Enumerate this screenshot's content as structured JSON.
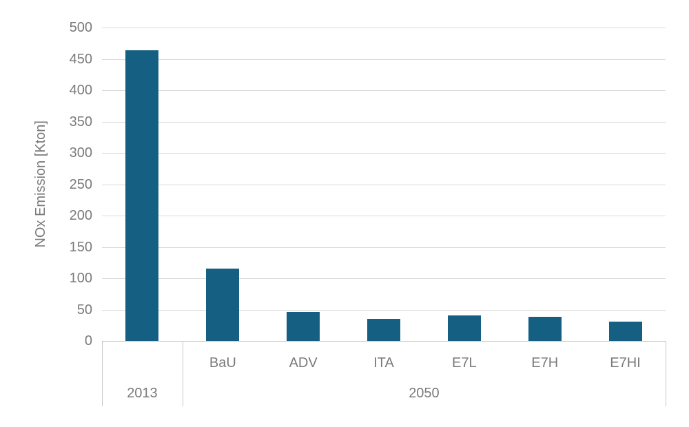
{
  "chart_data": {
    "type": "bar",
    "title": "",
    "ylabel": "NOx Emission [Kton]",
    "xlabel": "",
    "ylim": [
      0,
      500
    ],
    "ytick_step": 50,
    "yticks": [
      0,
      50,
      100,
      150,
      200,
      250,
      300,
      350,
      400,
      450,
      500
    ],
    "grid": true,
    "legend": false,
    "categories": [
      "",
      "BaU",
      "ADV",
      "ITA",
      "E7L",
      "E7H",
      "E7HI"
    ],
    "series": [
      {
        "name": "NOx Emission",
        "values": [
          464,
          115,
          46,
          35,
          41,
          39,
          31
        ]
      }
    ],
    "groups": [
      {
        "label": "2013",
        "start": 0,
        "span": 1
      },
      {
        "label": "2050",
        "start": 1,
        "span": 6
      }
    ],
    "colors": {
      "bar": "#156082",
      "grid": "#d9d9d9",
      "axis": "#c6c6c6",
      "text": "#7a7a7a",
      "background": "#ffffff"
    }
  }
}
